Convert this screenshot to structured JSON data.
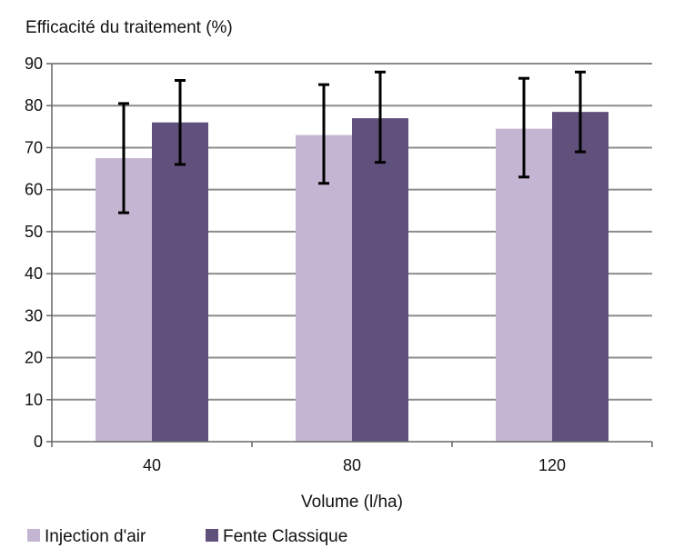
{
  "chart_data": {
    "type": "bar",
    "title": "",
    "ylabel": "Efficacité du traitement (%)",
    "xlabel": "Volume (l/ha)",
    "categories": [
      "40",
      "80",
      "120"
    ],
    "ylim": [
      0,
      90
    ],
    "yticks": [
      "0",
      "10",
      "20",
      "30",
      "40",
      "50",
      "60",
      "70",
      "80",
      "90"
    ],
    "grid": true,
    "legend_position": "bottom-left",
    "series": [
      {
        "name": "Injection d'air",
        "color": "#c4b6d3",
        "values": [
          67.5,
          73,
          74.5
        ],
        "error_low": [
          54.5,
          61.5,
          63
        ],
        "error_high": [
          80.5,
          85,
          86.5
        ]
      },
      {
        "name": "Fente Classique",
        "color": "#60507c",
        "values": [
          76,
          77,
          78.5
        ],
        "error_low": [
          66,
          66.5,
          69
        ],
        "error_high": [
          86,
          88,
          88
        ]
      }
    ]
  }
}
